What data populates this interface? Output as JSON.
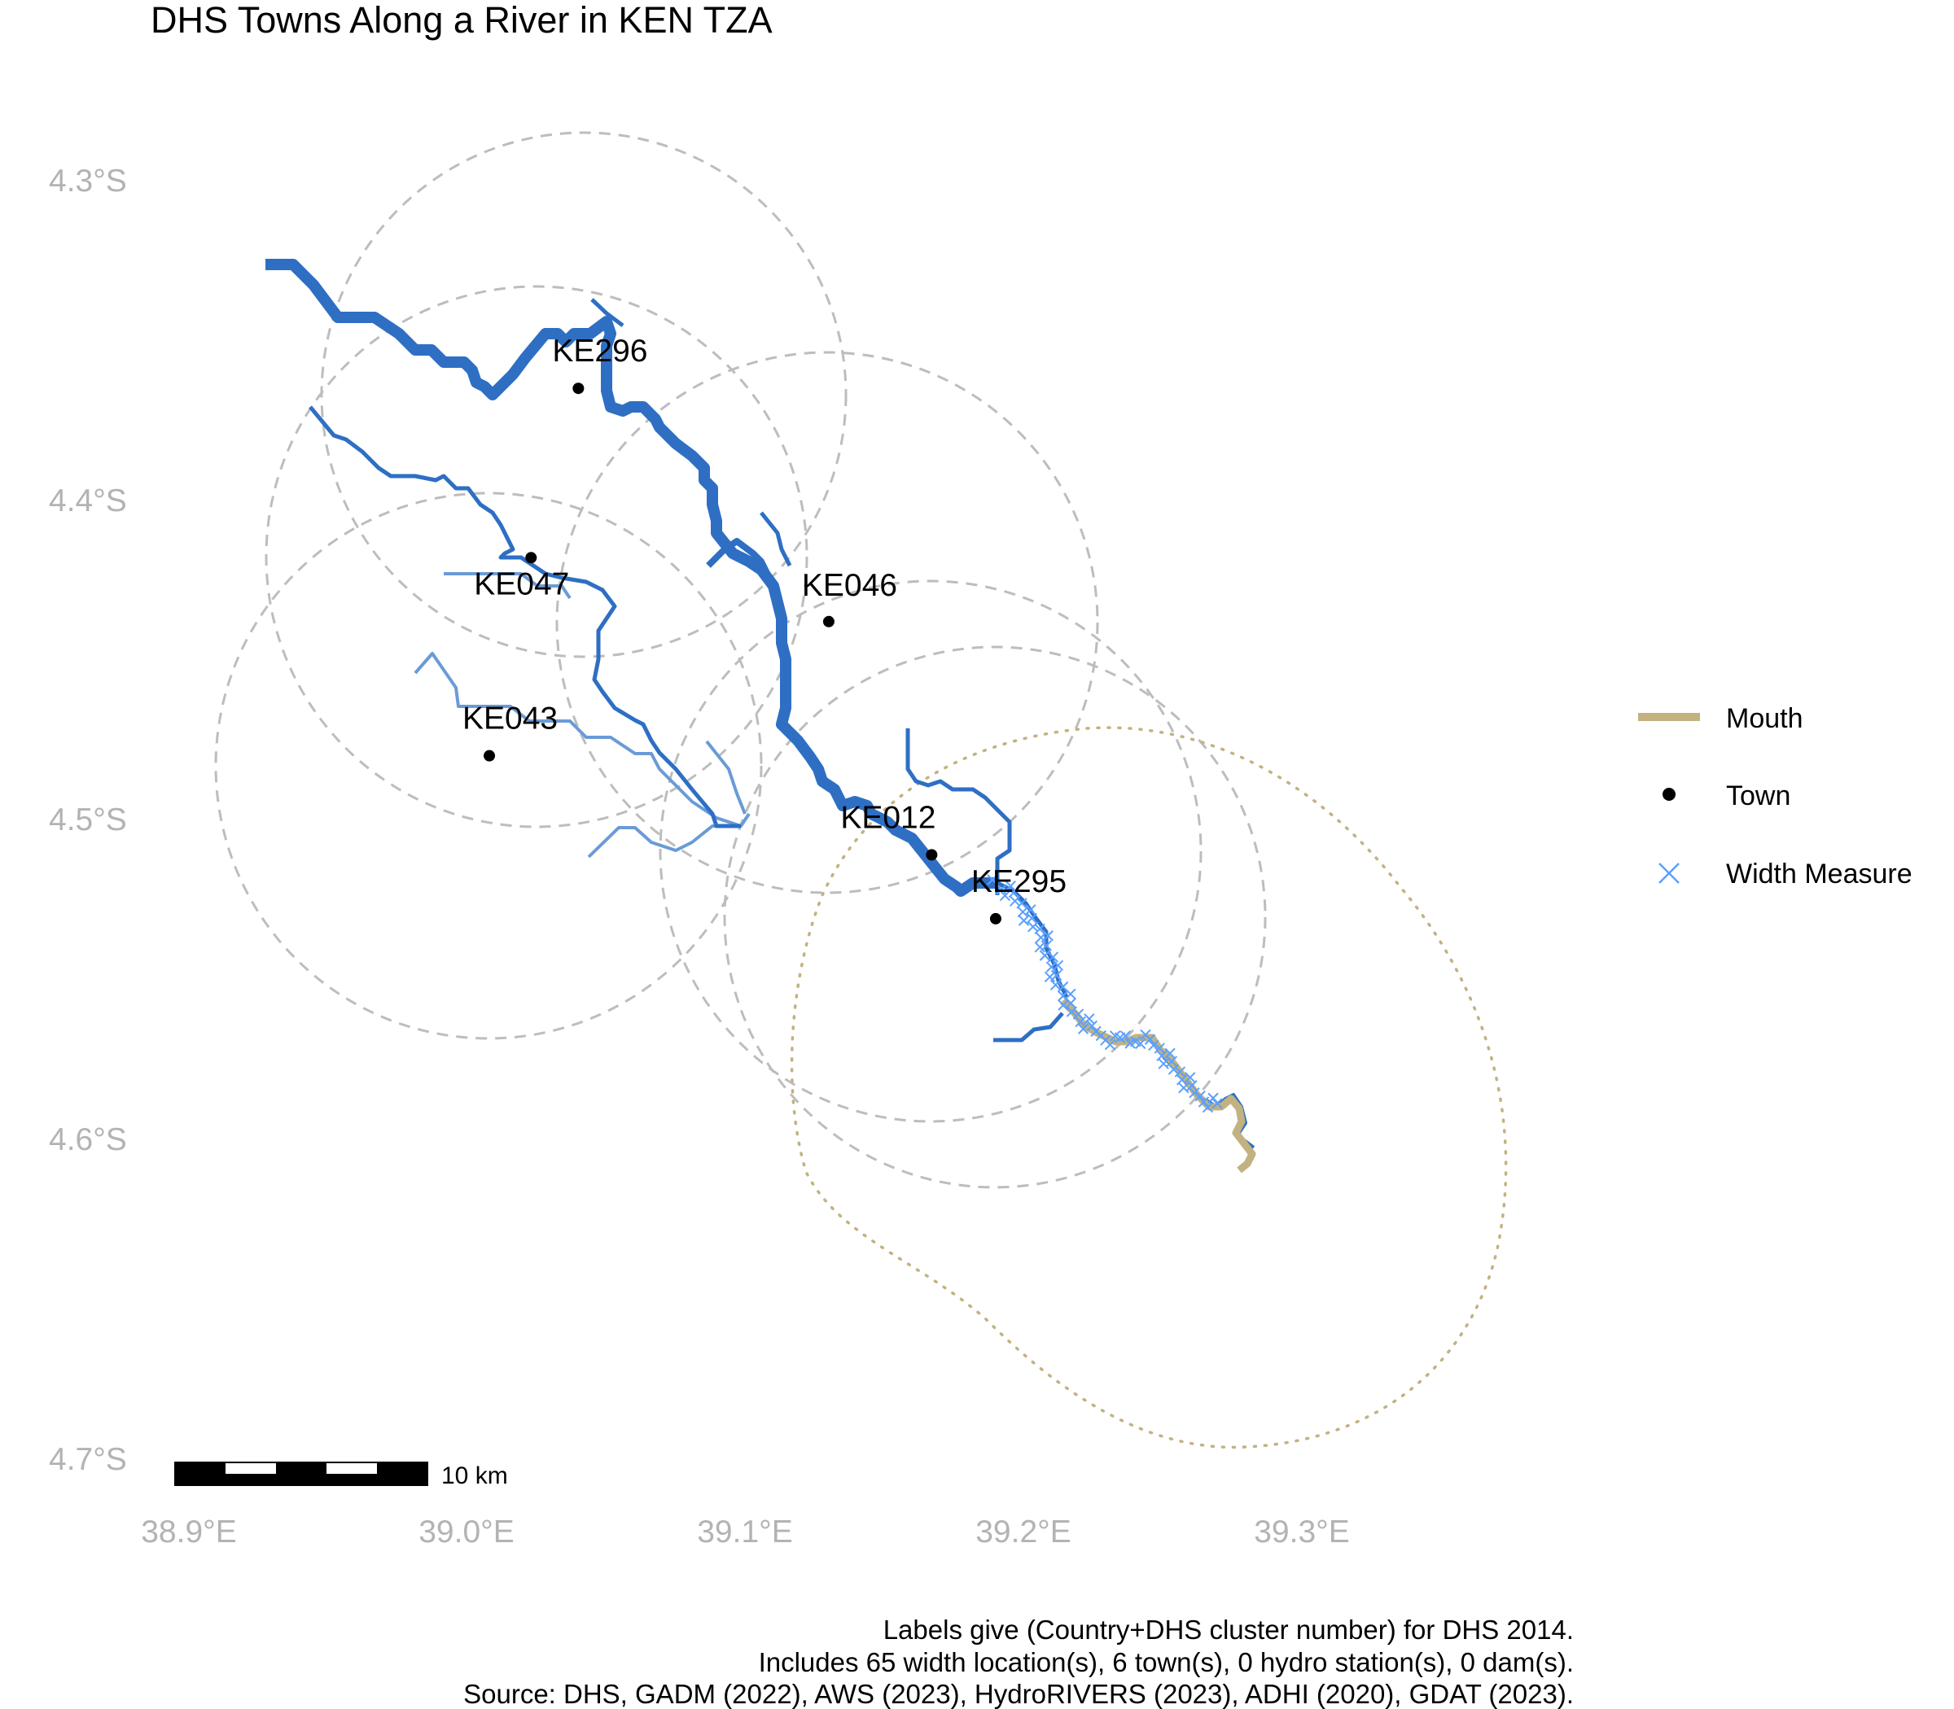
{
  "title": "DHS Towns Along a River in KEN TZA",
  "axes": {
    "lat_ticks": [
      "4.3°S",
      "4.4°S",
      "4.5°S",
      "4.6°S",
      "4.7°S"
    ],
    "lon_ticks": [
      "38.9°E",
      "39.0°E",
      "39.1°E",
      "39.2°E",
      "39.3°E"
    ]
  },
  "towns": [
    {
      "label": "KE296",
      "lon": 39.04,
      "lat": -4.365
    },
    {
      "label": "KE047",
      "lon": 39.023,
      "lat": -4.418
    },
    {
      "label": "KE046",
      "lon": 39.13,
      "lat": -4.438
    },
    {
      "label": "KE043",
      "lon": 39.008,
      "lat": -4.48
    },
    {
      "label": "KE012",
      "lon": 39.167,
      "lat": -4.511
    },
    {
      "label": "KE295",
      "lon": 39.19,
      "lat": -4.531
    }
  ],
  "legend": {
    "items": [
      {
        "label": "Mouth",
        "symbol": "line",
        "color": "#c2b280"
      },
      {
        "label": "Town",
        "symbol": "point",
        "color": "#000000"
      },
      {
        "label": "Width Measure",
        "symbol": "cross",
        "color": "#5aa0ff"
      }
    ]
  },
  "scale_bar": {
    "label": "10 km"
  },
  "caption": [
    "Labels give (Country+DHS cluster number) for DHS 2014.",
    "Includes 65 width location(s), 6 town(s), 0 hydro station(s), 0 dam(s).",
    "Source: DHS, GADM (2022), AWS (2023), HydroRIVERS (2023), ADHI (2020), GDAT (2023)."
  ],
  "colors": {
    "river": "#2e6fc4",
    "tributary": "#6a9bd6",
    "mouth": "#c2b280",
    "buffer": "#bdbdbd",
    "width_measure": "#5aa0ff",
    "town": "#000000"
  }
}
